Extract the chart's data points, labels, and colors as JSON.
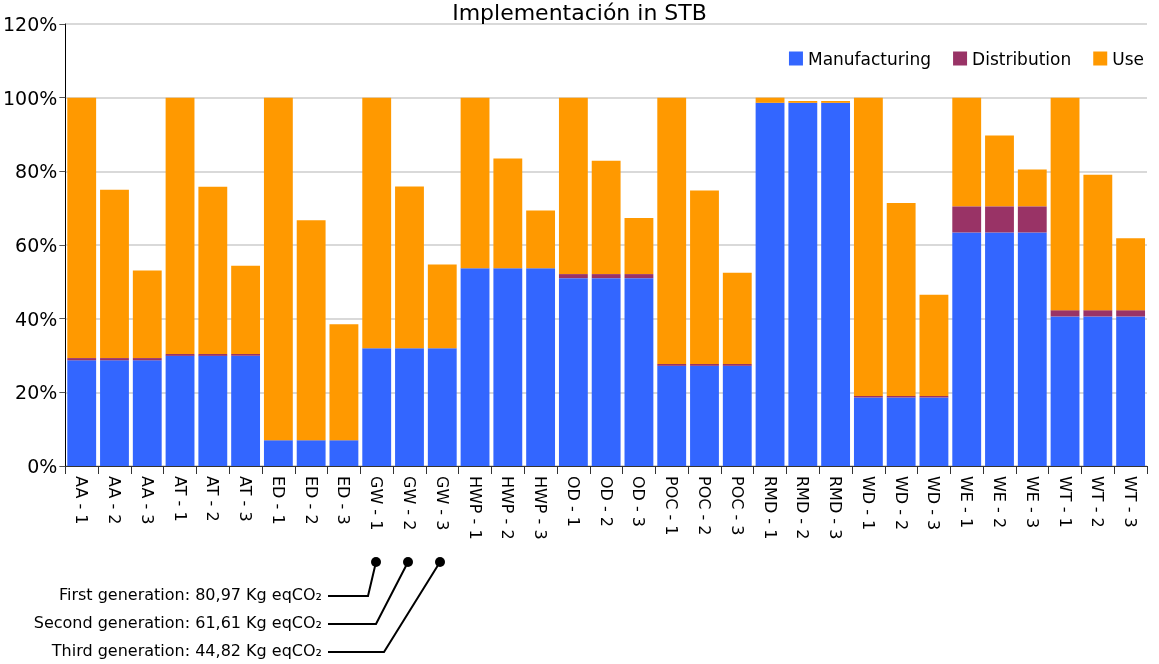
{
  "chart_data": {
    "type": "bar",
    "title": "Implementación in STB",
    "stacked": true,
    "categories": [
      "AA - 1",
      "AA - 2",
      "AA - 3",
      "AT - 1",
      "AT - 2",
      "AT - 3",
      "ED - 1",
      "ED - 2",
      "ED - 3",
      "GW - 1",
      "GW - 2",
      "GW - 3",
      "HWP - 1",
      "HWP - 2",
      "HWP - 3",
      "OD - 1",
      "OD - 2",
      "OD - 3",
      "POC - 1",
      "POC - 2",
      "POC - 3",
      "RMD - 1",
      "RMD - 2",
      "RMD - 3",
      "WD - 1",
      "WD - 2",
      "WD - 3",
      "WE - 1",
      "WE - 2",
      "WE - 3",
      "WT - 1",
      "WT - 2",
      "WT - 3"
    ],
    "series": [
      {
        "name": "Manufacturing",
        "color": "#3366ff",
        "values": [
          28.7,
          28.7,
          28.7,
          29.9,
          29.9,
          29.9,
          7.0,
          7.0,
          7.0,
          32.0,
          32.0,
          32.0,
          53.7,
          53.7,
          53.7,
          51.0,
          51.0,
          51.0,
          27.2,
          27.2,
          27.2,
          98.6,
          98.6,
          98.6,
          18.6,
          18.6,
          18.6,
          63.4,
          63.4,
          63.4,
          40.6,
          40.6,
          40.6
        ]
      },
      {
        "name": "Distribution",
        "color": "#993366",
        "values": [
          0.6,
          0.6,
          0.6,
          0.5,
          0.5,
          0.5,
          0,
          0,
          0,
          0,
          0,
          0,
          0,
          0,
          0,
          1.1,
          1.1,
          1.1,
          0.5,
          0.5,
          0.5,
          0,
          0,
          0,
          0.4,
          0.4,
          0.4,
          7.1,
          7.1,
          7.1,
          1.7,
          1.7,
          1.7
        ]
      },
      {
        "name": "Use",
        "color": "#ff9900",
        "values": [
          70.7,
          45.7,
          23.8,
          69.6,
          45.4,
          24.0,
          93.0,
          59.7,
          31.5,
          68.0,
          43.9,
          22.7,
          46.3,
          29.8,
          15.7,
          47.9,
          30.8,
          15.2,
          72.3,
          47.1,
          24.8,
          1.4,
          0.5,
          0.5,
          81.0,
          52.4,
          27.5,
          29.5,
          19.2,
          10.0,
          57.7,
          36.8,
          19.5
        ]
      }
    ],
    "ylim": [
      0,
      120
    ],
    "yticks": [
      {
        "value": 0,
        "label": "0%"
      },
      {
        "value": 20,
        "label": "20%"
      },
      {
        "value": 40,
        "label": "40%"
      },
      {
        "value": 60,
        "label": "60%"
      },
      {
        "value": 80,
        "label": "80%"
      },
      {
        "value": 100,
        "label": "100%"
      },
      {
        "value": 120,
        "label": "120%"
      }
    ],
    "grid": "y",
    "legend": "top right",
    "annotations": [
      "First generation: 80,97 Kg eqCO₂",
      "Second generation: 61,61 Kg eqCO₂",
      "Third generation: 44,82 Kg eqCO₂"
    ]
  }
}
